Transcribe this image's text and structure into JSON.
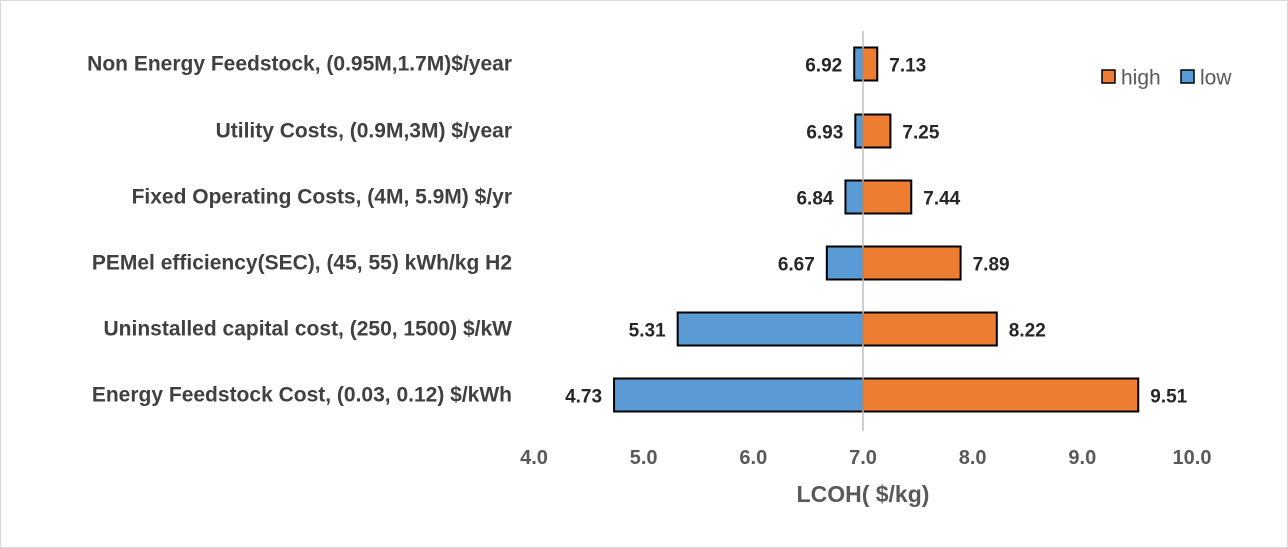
{
  "chart_data": {
    "type": "bar",
    "orientation": "horizontal",
    "subtype": "tornado",
    "baseline": 7.0,
    "categories": [
      "Non Energy Feedstock, (0.95M,1.7M)$/year",
      "Utility Costs, (0.9M,3M) $/year",
      "Fixed Operating Costs, (4M, 5.9M) $/yr",
      "PEMel efficiency(SEC),  (45, 55) kWh/kg H2",
      "Uninstalled capital cost, (250, 1500) $/kW",
      "Energy Feedstock Cost, (0.03, 0.12) $/kWh"
    ],
    "series": [
      {
        "name": "high",
        "color": "#ED7D31",
        "values": [
          7.13,
          7.25,
          7.44,
          7.89,
          8.22,
          9.51
        ]
      },
      {
        "name": "low",
        "color": "#5B9BD5",
        "values": [
          6.92,
          6.93,
          6.84,
          6.67,
          5.31,
          4.73
        ]
      }
    ],
    "value_labels": {
      "high": [
        "7.13",
        "7.25",
        "7.44",
        "7.89",
        "8.22",
        "9.51"
      ],
      "low": [
        "6.92",
        "6.93",
        "6.84",
        "6.67",
        "5.31",
        "4.73"
      ]
    },
    "xlabel": "LCOH( $/kg)",
    "xlim": [
      4.0,
      10.0
    ],
    "xticks": [
      "4.0",
      "5.0",
      "6.0",
      "7.0",
      "8.0",
      "9.0",
      "10.0"
    ],
    "grid": false,
    "legend": "top-right"
  }
}
